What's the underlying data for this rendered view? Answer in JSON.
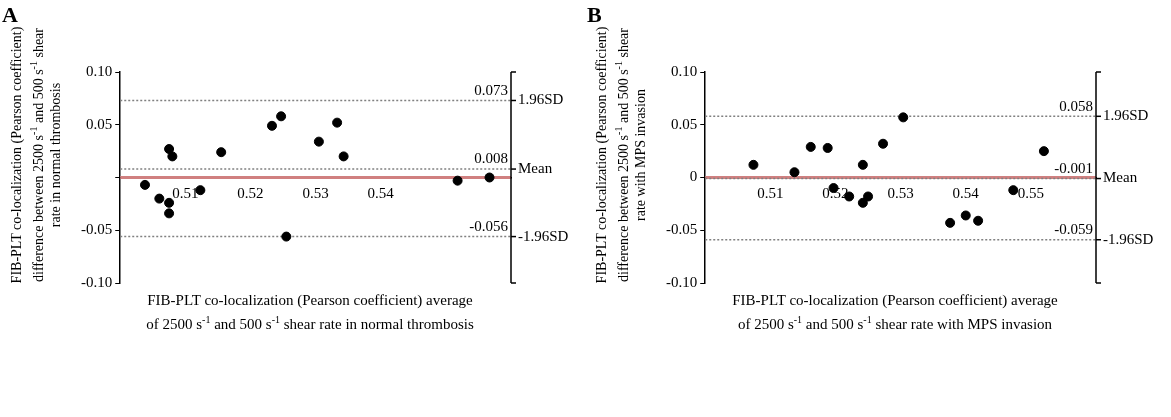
{
  "chart_data": [
    {
      "type": "scatter",
      "title": "A",
      "xlabel": "FIB-PLT co-localization (Pearson coefficient) average of 2500 s$^{-1}$ and 500 s$^{-1}$ shear rate in normal thrombosis",
      "ylabel": "FIB-PLT co-localization (Pearson coefficient) difference between 2500 s$^{-1}$ and 500 s$^{-1}$ shear rate in normal thrombosis",
      "marker": "circle",
      "grid": false,
      "legend": false,
      "series": [
        {
          "color": "#000000",
          "x": [
            0.5038,
            0.506,
            0.5075,
            0.508,
            0.5075,
            0.5075,
            0.5123,
            0.5155,
            0.5233,
            0.5247,
            0.5255,
            0.5305,
            0.5333,
            0.5343,
            0.5518,
            0.5567
          ],
          "values": [
            -0.007,
            -0.02,
            0.027,
            0.02,
            -0.024,
            -0.034,
            -0.012,
            0.024,
            0.049,
            0.058,
            -0.056,
            0.034,
            0.052,
            0.02,
            -0.003,
            0.0
          ]
        }
      ],
      "xlim": [
        0.5,
        0.56
      ],
      "xticks": [
        0.51,
        0.52,
        0.53,
        0.54
      ],
      "ylim": [
        -0.1,
        0.1
      ],
      "yticks": [
        {
          "value": -0.1,
          "label": "-0.10"
        },
        -0.05,
        {
          "value": 0,
          "label": null
        },
        0.05,
        {
          "value": 0.1,
          "label": "0.10"
        }
      ],
      "annotations": [
        {
          "text": "0.073",
          "y": 0.073
        },
        {
          "text": "0.008",
          "y": 0.008
        },
        {
          "text": "-0.056",
          "y": -0.056
        }
      ],
      "ref_lines": [
        {
          "axis": "y",
          "value": 0,
          "color": "#d08080",
          "line_style": "solid"
        },
        {
          "axis": "y",
          "value": 0.073,
          "label": "1.96SD",
          "color": "#808080",
          "line_style": "dotted"
        },
        {
          "axis": "y",
          "value": 0.008,
          "label": "Mean",
          "color": "#808080",
          "line_style": "dotted"
        },
        {
          "axis": "y",
          "value": -0.056,
          "label": "-1.96SD",
          "color": "#808080",
          "line_style": "dotted"
        }
      ]
    },
    {
      "type": "scatter",
      "title": "B",
      "xlabel": "FIB-PLT co-localization (Pearson coefficient) average of 2500 s$^{-1}$ and 500 s$^{-1}$ shear rate with MPS invasion",
      "ylabel": "FIB-PLT co-localization (Pearson coefficient) difference between 2500 s$^{-1}$ and 500 s$^{-1}$ shear rate with MPS invasion",
      "marker": "circle",
      "grid": false,
      "legend": false,
      "series": [
        {
          "color": "#000000",
          "x": [
            0.5074,
            0.5137,
            0.5162,
            0.5188,
            0.5197,
            0.5221,
            0.5242,
            0.5242,
            0.525,
            0.5273,
            0.5304,
            0.5376,
            0.54,
            0.5419,
            0.5473,
            0.552
          ],
          "values": [
            0.012,
            0.005,
            0.029,
            0.028,
            -0.01,
            -0.018,
            0.012,
            -0.024,
            -0.018,
            0.032,
            0.057,
            -0.043,
            -0.036,
            -0.041,
            -0.012,
            0.025
          ]
        }
      ],
      "xlim": [
        0.5,
        0.56
      ],
      "xticks": [
        0.51,
        0.52,
        0.53,
        0.54,
        0.55
      ],
      "ylim": [
        -0.1,
        0.1
      ],
      "yticks": [
        {
          "value": -0.1,
          "label": "-0.10"
        },
        -0.05,
        0,
        0.05,
        {
          "value": 0.1,
          "label": "0.10"
        }
      ],
      "annotations": [
        {
          "text": "0.058",
          "y": 0.058
        },
        {
          "text": "-0.001",
          "y": -0.001
        },
        {
          "text": "-0.059",
          "y": -0.059
        }
      ],
      "ref_lines": [
        {
          "axis": "y",
          "value": 0,
          "color": "#d08080",
          "line_style": "solid"
        },
        {
          "axis": "y",
          "value": 0.058,
          "label": "1.96SD",
          "color": "#808080",
          "line_style": "dotted"
        },
        {
          "axis": "y",
          "value": -0.001,
          "label": "Mean",
          "color": "#808080",
          "line_style": "dotted"
        },
        {
          "axis": "y",
          "value": -0.059,
          "label": "-1.96SD",
          "color": "#808080",
          "line_style": "dotted"
        }
      ]
    }
  ]
}
